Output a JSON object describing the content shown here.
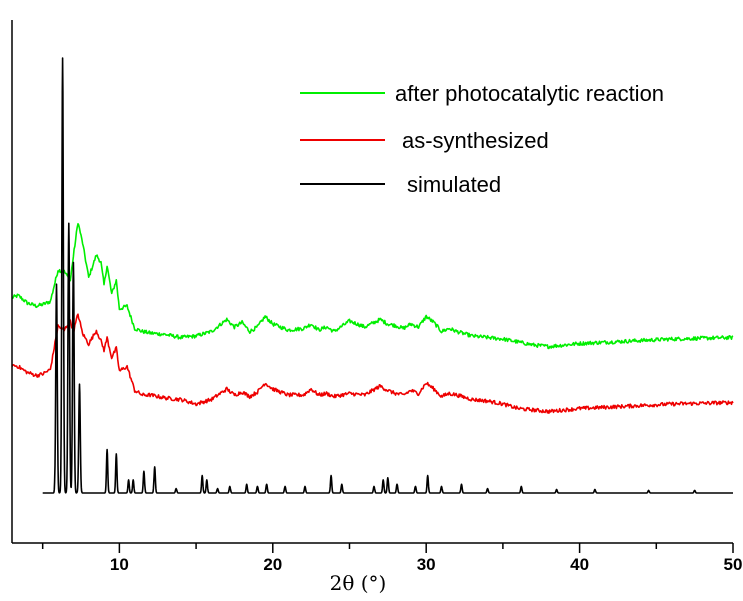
{
  "chart_data": {
    "type": "line",
    "title": "",
    "xlabel": "2θ (°)",
    "ylabel": "",
    "xlim": [
      3,
      50
    ],
    "x_ticks": [
      10,
      20,
      30,
      40,
      50
    ],
    "y_ticks_shown": false,
    "grid": false,
    "legend": "top-right",
    "series": [
      {
        "name": "after photocatalytic reaction",
        "color": "#00ee00",
        "x": [
          3.0,
          3.4,
          4.0,
          4.6,
          5.0,
          5.5,
          6.0,
          6.4,
          6.8,
          7.0,
          7.3,
          7.6,
          8.0,
          8.5,
          8.8,
          9.0,
          9.2,
          9.5,
          9.8,
          10.0,
          10.5,
          11.0,
          11.5,
          12.0,
          13.0,
          14.0,
          15.0,
          16.0,
          17.0,
          17.5,
          18.0,
          18.5,
          19.0,
          19.5,
          20.0,
          21.0,
          22.0,
          22.5,
          23.0,
          23.5,
          24.0,
          25.0,
          26.0,
          27.0,
          27.5,
          28.0,
          28.5,
          29.0,
          29.5,
          30.0,
          30.5,
          31.0,
          31.5,
          32.0,
          33.0,
          34.0,
          35.0,
          36.0,
          37.0,
          38.0,
          39.0,
          40.0,
          42.0,
          44.0,
          46.0,
          48.0,
          50.0
        ],
        "y": [
          75,
          78,
          68,
          64,
          66,
          70,
          112,
          110,
          98,
          130,
          176,
          148,
          102,
          132,
          122,
          92,
          118,
          80,
          98,
          60,
          64,
          34,
          30,
          28,
          26,
          22,
          24,
          30,
          46,
          36,
          42,
          30,
          36,
          50,
          40,
          32,
          34,
          40,
          32,
          36,
          30,
          44,
          36,
          46,
          40,
          38,
          34,
          40,
          36,
          50,
          42,
          30,
          34,
          30,
          24,
          22,
          20,
          16,
          12,
          10,
          12,
          14,
          16,
          18,
          20,
          21,
          22
        ]
      },
      {
        "name": "as-synthesized",
        "color": "#ee0000",
        "x": [
          3.0,
          3.4,
          4.0,
          4.6,
          5.0,
          5.5,
          6.0,
          6.4,
          6.8,
          7.0,
          7.3,
          7.6,
          8.0,
          8.5,
          8.8,
          9.0,
          9.2,
          9.5,
          9.8,
          10.0,
          10.5,
          11.0,
          11.5,
          12.0,
          13.0,
          14.0,
          15.0,
          16.0,
          17.0,
          17.5,
          18.0,
          18.5,
          19.0,
          19.5,
          20.0,
          21.0,
          22.0,
          22.5,
          23.0,
          23.5,
          24.0,
          25.0,
          26.0,
          27.0,
          27.5,
          28.0,
          28.5,
          29.0,
          29.5,
          30.0,
          30.5,
          31.0,
          31.5,
          32.0,
          33.0,
          34.0,
          35.0,
          36.0,
          37.0,
          38.0,
          39.0,
          40.0,
          42.0,
          44.0,
          46.0,
          48.0,
          50.0
        ],
        "y": [
          68,
          66,
          58,
          54,
          56,
          62,
          120,
          114,
          128,
          112,
          136,
          110,
          96,
          114,
          100,
          88,
          104,
          78,
          90,
          60,
          66,
          34,
          28,
          28,
          24,
          22,
          16,
          22,
          36,
          28,
          32,
          26,
          32,
          44,
          36,
          28,
          28,
          36,
          28,
          30,
          26,
          30,
          28,
          40,
          34,
          30,
          28,
          34,
          30,
          44,
          36,
          26,
          30,
          28,
          22,
          20,
          16,
          10,
          8,
          6,
          8,
          10,
          12,
          14,
          16,
          17,
          18
        ]
      },
      {
        "name": "simulated",
        "color": "#000000",
        "peaks": [
          {
            "x": 5.9,
            "y": 48
          },
          {
            "x": 6.3,
            "y": 100
          },
          {
            "x": 6.7,
            "y": 62
          },
          {
            "x": 7.0,
            "y": 53
          },
          {
            "x": 7.4,
            "y": 25
          },
          {
            "x": 9.2,
            "y": 10
          },
          {
            "x": 9.8,
            "y": 9
          },
          {
            "x": 10.6,
            "y": 3
          },
          {
            "x": 10.9,
            "y": 3
          },
          {
            "x": 11.6,
            "y": 5
          },
          {
            "x": 12.3,
            "y": 6
          },
          {
            "x": 13.7,
            "y": 1
          },
          {
            "x": 15.4,
            "y": 4
          },
          {
            "x": 15.7,
            "y": 3
          },
          {
            "x": 16.4,
            "y": 1
          },
          {
            "x": 17.2,
            "y": 1.5
          },
          {
            "x": 18.3,
            "y": 2
          },
          {
            "x": 19.0,
            "y": 1.5
          },
          {
            "x": 19.6,
            "y": 2
          },
          {
            "x": 20.8,
            "y": 1.5
          },
          {
            "x": 22.1,
            "y": 1.5
          },
          {
            "x": 23.8,
            "y": 4
          },
          {
            "x": 24.5,
            "y": 2
          },
          {
            "x": 26.6,
            "y": 1.5
          },
          {
            "x": 27.2,
            "y": 3
          },
          {
            "x": 27.5,
            "y": 3.5
          },
          {
            "x": 28.1,
            "y": 2
          },
          {
            "x": 29.3,
            "y": 1.5
          },
          {
            "x": 30.1,
            "y": 4
          },
          {
            "x": 31.0,
            "y": 1.5
          },
          {
            "x": 32.3,
            "y": 2
          },
          {
            "x": 34.0,
            "y": 1
          },
          {
            "x": 36.2,
            "y": 1.5
          },
          {
            "x": 38.5,
            "y": 0.8
          },
          {
            "x": 41.0,
            "y": 0.8
          },
          {
            "x": 44.5,
            "y": 0.6
          },
          {
            "x": 47.5,
            "y": 0.6
          }
        ],
        "x_start": 5.0,
        "x_end": 50.0
      }
    ]
  }
}
